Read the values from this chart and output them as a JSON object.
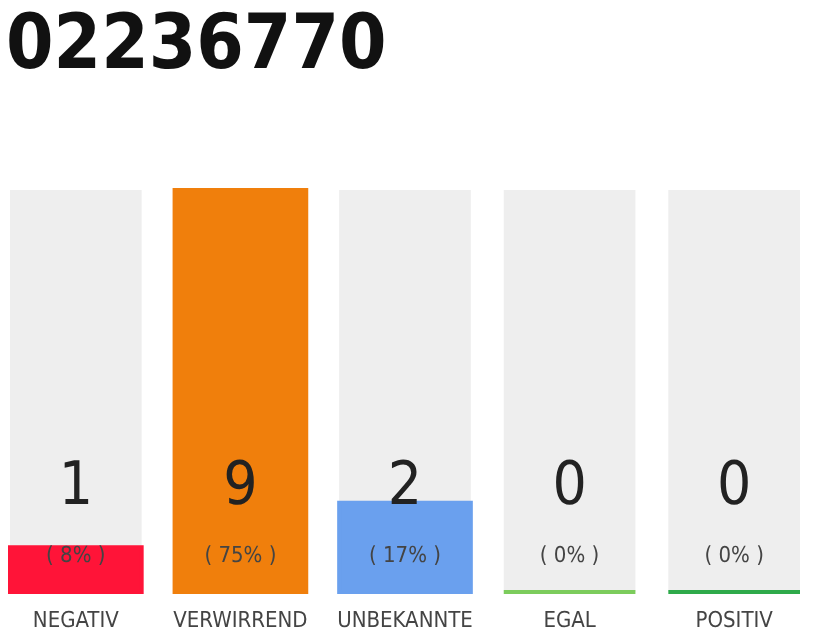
{
  "chart_data": {
    "type": "bar",
    "title": "02236770",
    "categories": [
      "NEGATIV",
      "VERWIRREND",
      "UNBEKANNTE",
      "EGAL",
      "POSITIV"
    ],
    "values": [
      1,
      9,
      2,
      0,
      0
    ],
    "colors": [
      "#ff1438",
      "#f07f0c",
      "#6aa0ee",
      "#7ccc5c",
      "#2eaa4a"
    ],
    "data_labels": true,
    "annotations": [
      "( 8% )",
      "( 75% )",
      "( 17% )",
      "( 0% )",
      "( 0% )"
    ],
    "tick_labels": "x",
    "legend": false
  }
}
